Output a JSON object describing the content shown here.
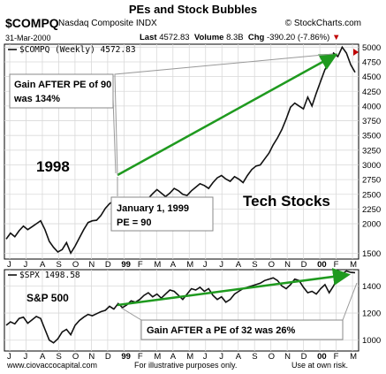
{
  "header": {
    "title": "PEs and Stock Bubbles",
    "symbol": "$COMPQ",
    "index_name": "Nasdaq Composite INDX",
    "brand": "© StockCharts.com",
    "date": "31-Mar-2000",
    "last_label": "Last",
    "last_value": "4572.83",
    "volume_label": "Volume",
    "volume_value": "8.3B",
    "chg_label": "Chg",
    "chg_value": "-390.20 (-7.86%)"
  },
  "footer": {
    "site": "www.ciovaccocapital.com",
    "note": "For illustrative purposes only.",
    "risk": "Use at own risk."
  },
  "colors": {
    "price": "#111111",
    "trend": "#1f9a1f",
    "grid": "#d9d9d9",
    "marker": "#c00000"
  },
  "chart_data": [
    {
      "type": "line",
      "legend": "$COMPQ (Weekly) 4572.83",
      "x_ticks": [
        "J",
        "J",
        "A",
        "S",
        "O",
        "N",
        "D",
        "99",
        "F",
        "M",
        "A",
        "M",
        "J",
        "J",
        "A",
        "S",
        "O",
        "N",
        "D",
        "00",
        "F",
        "M"
      ],
      "ylim": [
        1400,
        5050
      ],
      "y_ticks": [
        1500,
        2000,
        2250,
        2500,
        2750,
        3000,
        3250,
        3500,
        3750,
        4000,
        4250,
        4500,
        4750,
        5000
      ],
      "grid": true,
      "series": [
        {
          "values": [
            1740,
            1840,
            1780,
            1880,
            1960,
            1900,
            1950,
            2000,
            2050,
            1900,
            1700,
            1600,
            1520,
            1560,
            1680,
            1500,
            1620,
            1760,
            1900,
            2020,
            2050,
            2060,
            2140,
            2260,
            2340,
            2392,
            2440,
            2340,
            2380,
            2420,
            2330,
            2290,
            2360,
            2430,
            2510,
            2580,
            2520,
            2460,
            2520,
            2600,
            2560,
            2500,
            2480,
            2560,
            2620,
            2680,
            2650,
            2600,
            2700,
            2780,
            2820,
            2760,
            2720,
            2800,
            2760,
            2700,
            2820,
            2920,
            2980,
            3000,
            3100,
            3200,
            3340,
            3460,
            3600,
            3780,
            3980,
            4050,
            4000,
            3950,
            4150,
            4000,
            4220,
            4420,
            4620,
            4740,
            4900,
            4840,
            5000,
            4900,
            4700,
            4572
          ]
        }
      ],
      "annotations": [
        {
          "text": "Gain AFTER PE of 90 was 134%"
        },
        {
          "text": "1998"
        },
        {
          "text": "January 1, 1999 PE = 90"
        },
        {
          "text": "Tech Stocks"
        }
      ]
    },
    {
      "type": "line",
      "legend": "$SPX 1498.58",
      "x_ticks": [
        "J",
        "J",
        "A",
        "S",
        "O",
        "N",
        "D",
        "99",
        "F",
        "M",
        "A",
        "M",
        "J",
        "J",
        "A",
        "S",
        "O",
        "N",
        "D",
        "00",
        "F",
        "M"
      ],
      "ylim": [
        920,
        1520
      ],
      "y_ticks": [
        1000,
        1200,
        1400
      ],
      "grid": true,
      "series": [
        {
          "values": [
            1110,
            1135,
            1120,
            1160,
            1170,
            1125,
            1150,
            1175,
            1160,
            1080,
            1000,
            980,
            1010,
            1060,
            1080,
            1040,
            1110,
            1145,
            1170,
            1190,
            1180,
            1195,
            1210,
            1220,
            1250,
            1229,
            1270,
            1240,
            1260,
            1290,
            1280,
            1300,
            1330,
            1350,
            1320,
            1340,
            1310,
            1340,
            1370,
            1360,
            1330,
            1300,
            1340,
            1380,
            1370,
            1390,
            1360,
            1380,
            1330,
            1300,
            1320,
            1280,
            1300,
            1340,
            1360,
            1380,
            1390,
            1400,
            1410,
            1420,
            1440,
            1450,
            1460,
            1440,
            1400,
            1380,
            1410,
            1450,
            1440,
            1390,
            1350,
            1360,
            1340,
            1380,
            1410,
            1350,
            1400,
            1460,
            1490,
            1510,
            1500,
            1498
          ]
        }
      ],
      "annotations": [
        {
          "text": "S&P 500"
        },
        {
          "text": "Gain AFTER a PE of 32 was 26%"
        }
      ]
    }
  ]
}
